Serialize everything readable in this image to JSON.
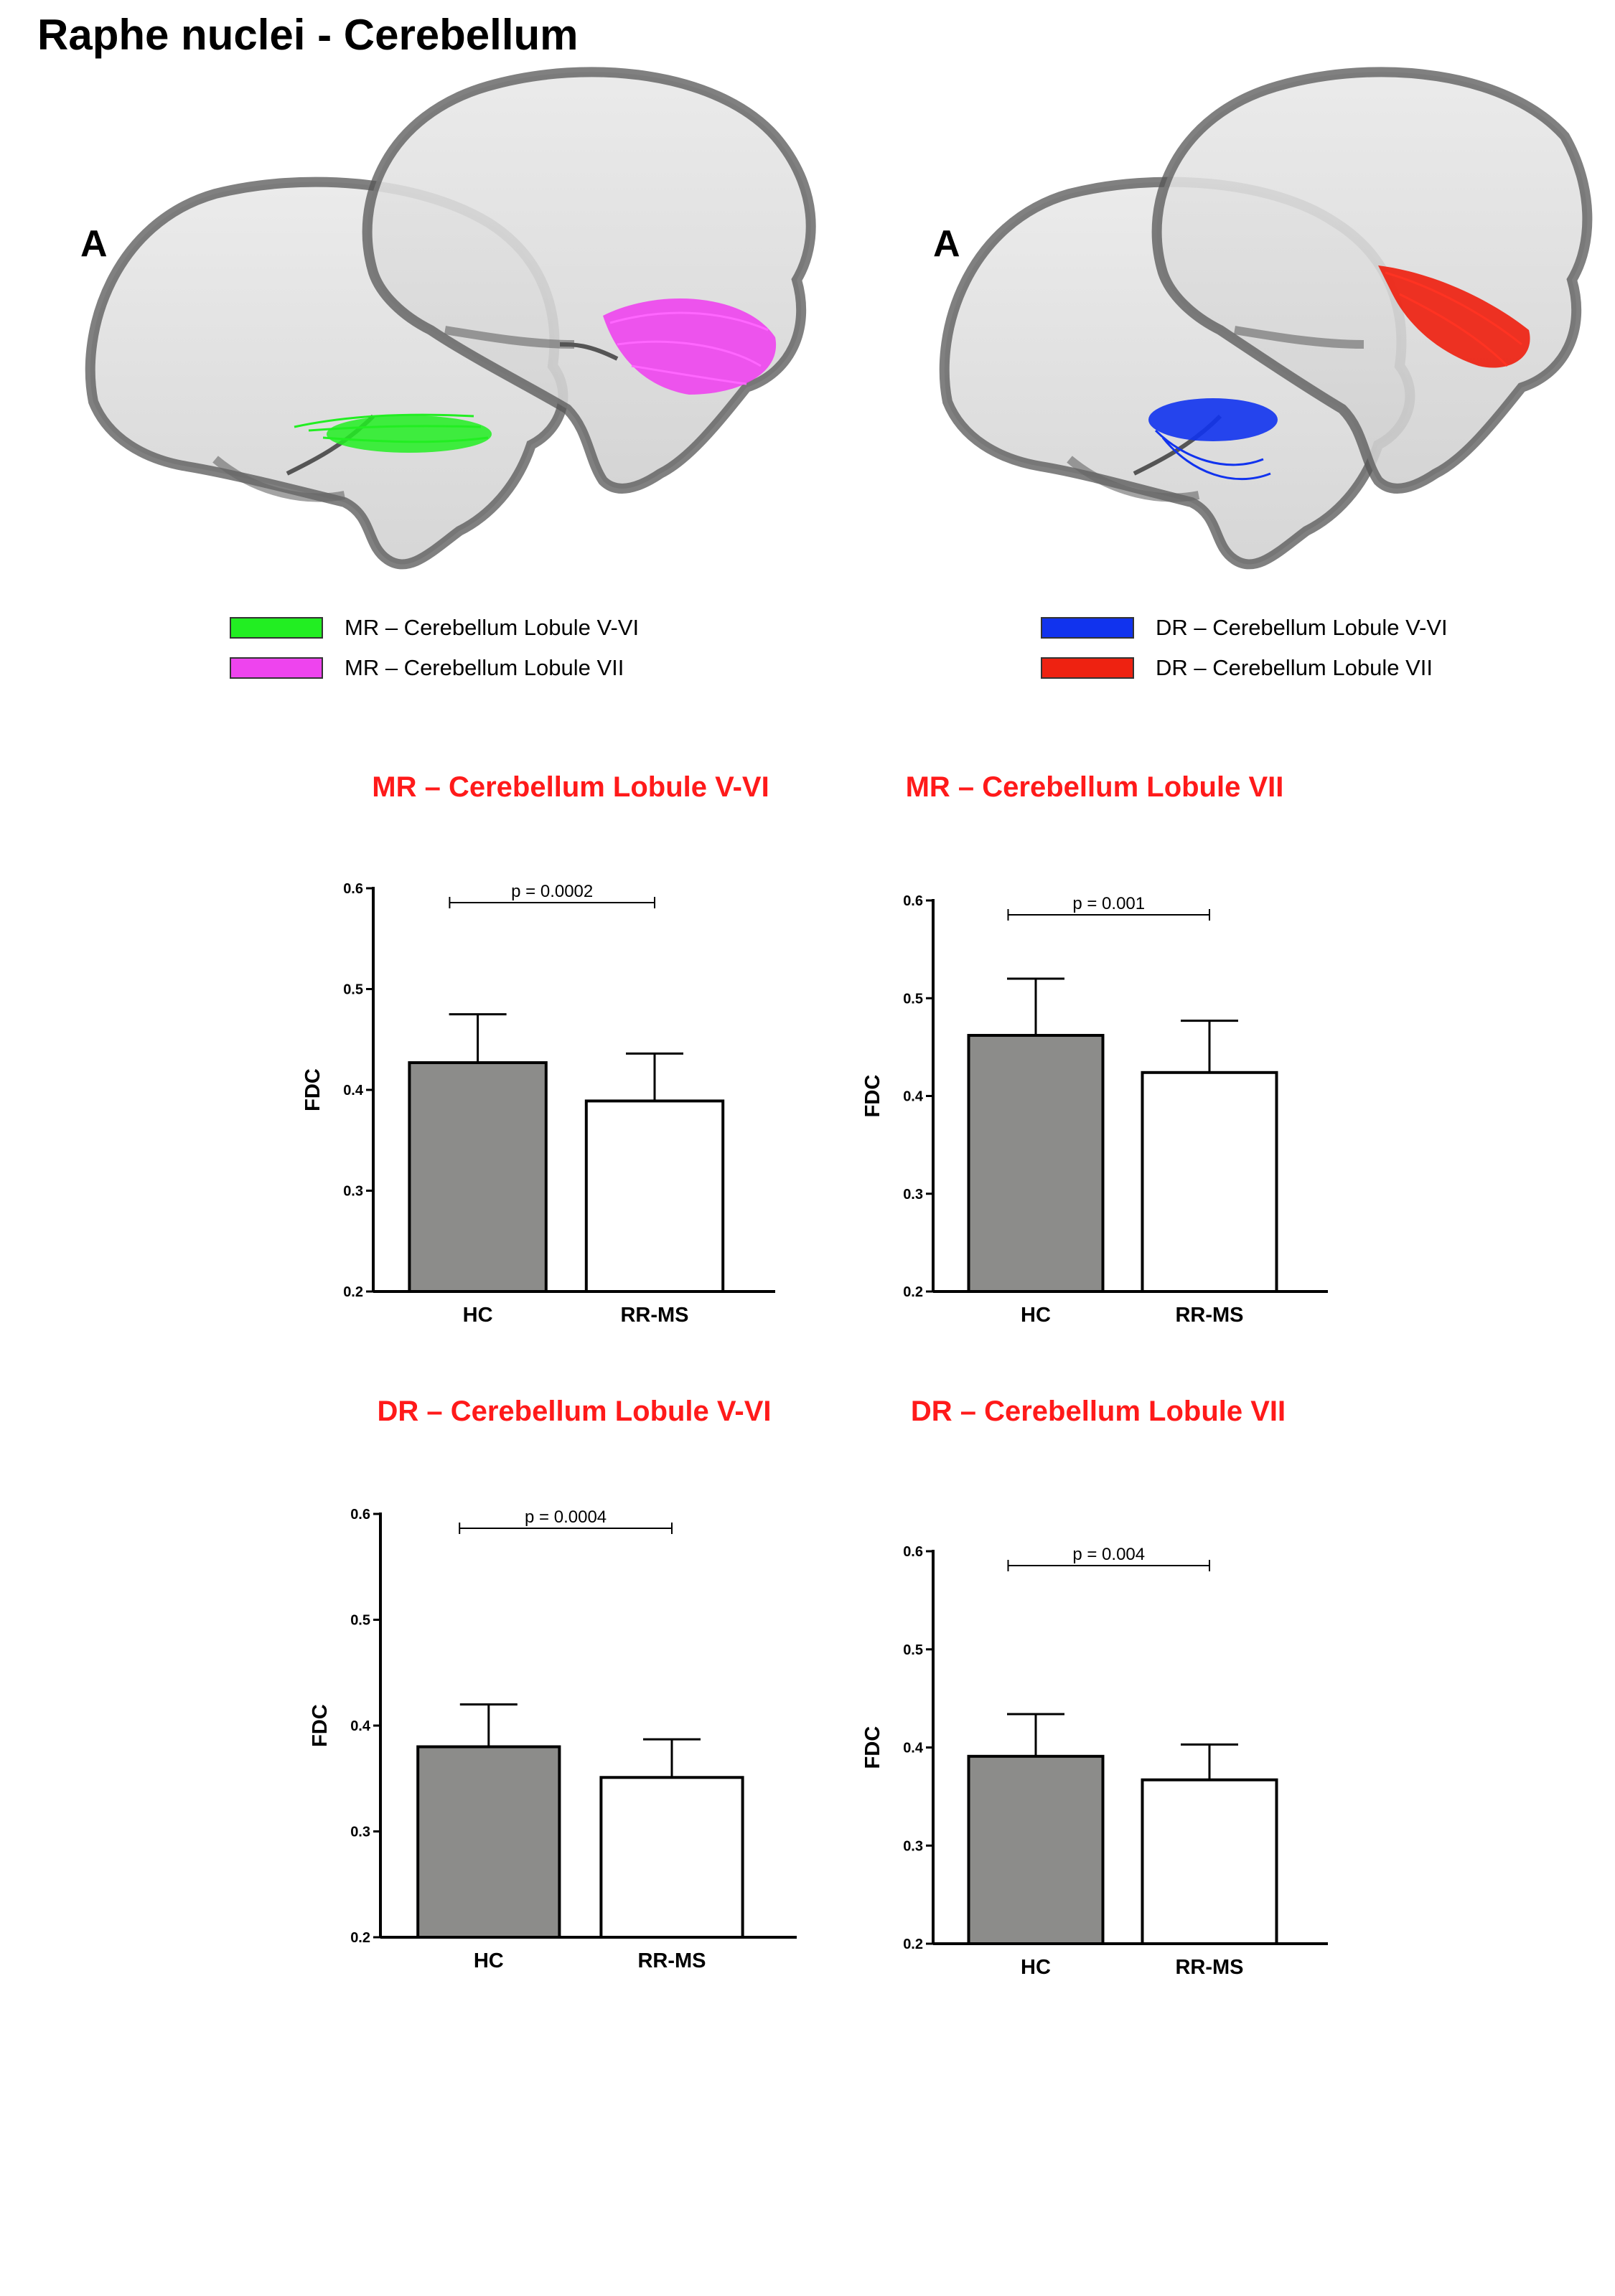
{
  "page_title": "Raphe nuclei - Cerebellum",
  "panels": [
    {
      "letter": "A",
      "tracts": [
        {
          "label": "MR – Cerebellum Lobule V-VI",
          "color": "#22ee22"
        },
        {
          "label": "MR – Cerebellum Lobule VII",
          "color": "#ee44ee"
        }
      ]
    },
    {
      "letter": "A",
      "tracts": [
        {
          "label": "DR – Cerebellum Lobule V-VI",
          "color": "#1133ee"
        },
        {
          "label": "DR – Cerebellum Lobule VII",
          "color": "#ee2211"
        }
      ]
    }
  ],
  "colors": {
    "title_red": "#ff1a1a",
    "hc_bar": "#8c8c8a",
    "rrms_bar": "#ffffff"
  },
  "chart_data": [
    {
      "type": "bar",
      "title": "MR – Cerebellum Lobule V-VI",
      "xlabel": "",
      "ylabel": "FDC",
      "categories": [
        "HC",
        "RR-MS"
      ],
      "values": [
        0.427,
        0.389
      ],
      "errors": [
        0.048,
        0.047
      ],
      "ylim": [
        0.2,
        0.6
      ],
      "yticks": [
        "0.2",
        "0.3",
        "0.4",
        "0.5",
        "0.6"
      ],
      "annotation": "p = 0.0002"
    },
    {
      "type": "bar",
      "title": "MR – Cerebellum Lobule VII",
      "xlabel": "",
      "ylabel": "FDC",
      "categories": [
        "HC",
        "RR-MS"
      ],
      "values": [
        0.462,
        0.424
      ],
      "errors": [
        0.058,
        0.053
      ],
      "ylim": [
        0.2,
        0.6
      ],
      "yticks": [
        "0.2",
        "0.3",
        "0.4",
        "0.5",
        "0.6"
      ],
      "annotation": "p = 0.001"
    },
    {
      "type": "bar",
      "title": "DR – Cerebellum Lobule V-VI",
      "xlabel": "",
      "ylabel": "FDC",
      "categories": [
        "HC",
        "RR-MS"
      ],
      "values": [
        0.38,
        0.351
      ],
      "errors": [
        0.04,
        0.036
      ],
      "ylim": [
        0.2,
        0.6
      ],
      "yticks": [
        "0.2",
        "0.3",
        "0.4",
        "0.5",
        "0.6"
      ],
      "annotation": "p = 0.0004"
    },
    {
      "type": "bar",
      "title": "DR – Cerebellum Lobule VII",
      "xlabel": "",
      "ylabel": "FDC",
      "categories": [
        "HC",
        "RR-MS"
      ],
      "values": [
        0.391,
        0.367
      ],
      "errors": [
        0.043,
        0.036
      ],
      "ylim": [
        0.2,
        0.6
      ],
      "yticks": [
        "0.2",
        "0.3",
        "0.4",
        "0.5",
        "0.6"
      ],
      "annotation": "p = 0.004"
    }
  ]
}
